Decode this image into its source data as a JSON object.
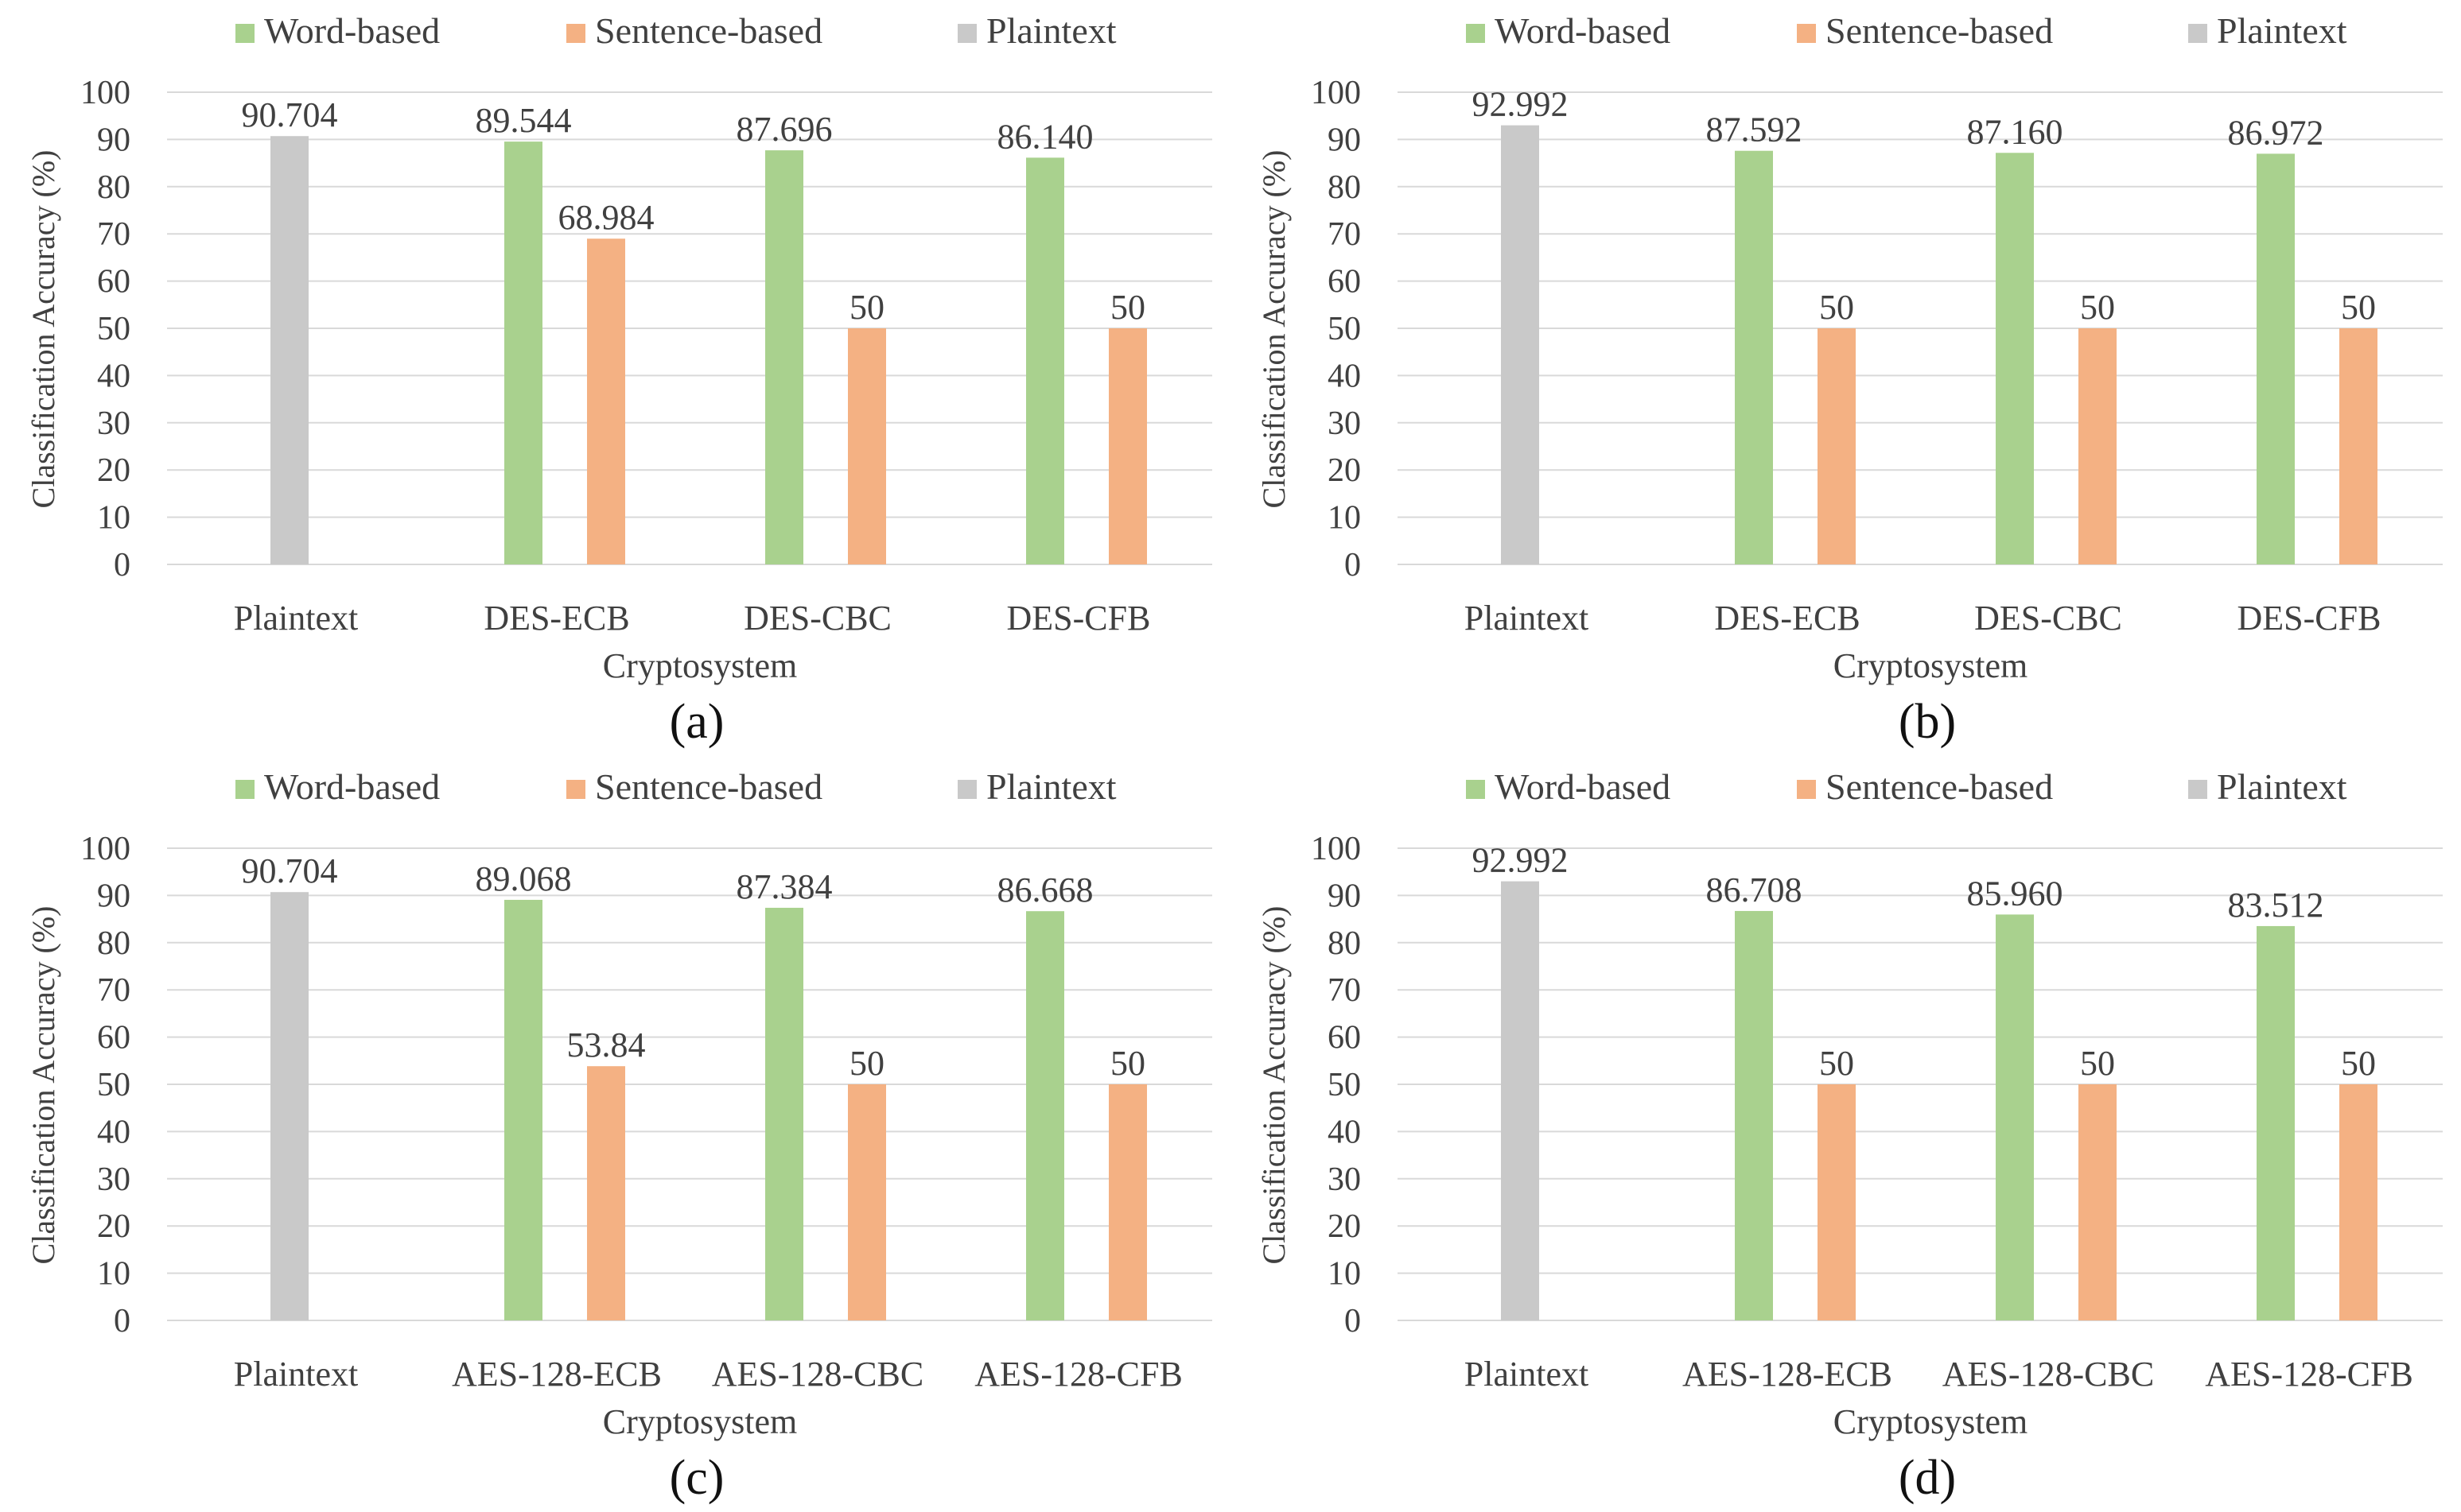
{
  "chart_data": [
    {
      "panel": "a",
      "type": "bar",
      "caption": "(a)",
      "xlabel": "Cryptosystem",
      "ylabel": "Classification Accuracy (%)",
      "ylim": [
        0,
        100
      ],
      "yticks": [
        0,
        10,
        20,
        30,
        40,
        50,
        60,
        70,
        80,
        90,
        100
      ],
      "legend": [
        "Word-based",
        "Sentence-based",
        "Plaintext"
      ],
      "categories": [
        "Plaintext",
        "DES-ECB",
        "DES-CBC",
        "DES-CFB"
      ],
      "series": [
        {
          "name": "Plaintext",
          "color": "#c9c9c9",
          "values": [
            90.704,
            null,
            null,
            null
          ],
          "labels": [
            "90.704",
            null,
            null,
            null
          ]
        },
        {
          "name": "Word-based",
          "color": "#a9d18e",
          "values": [
            null,
            89.544,
            87.696,
            86.14
          ],
          "labels": [
            null,
            "89.544",
            "87.696",
            "86.140"
          ]
        },
        {
          "name": "Sentence-based",
          "color": "#f4b183",
          "values": [
            null,
            68.984,
            50,
            50
          ],
          "labels": [
            null,
            "68.984",
            "50",
            "50"
          ]
        }
      ]
    },
    {
      "panel": "b",
      "type": "bar",
      "caption": "(b)",
      "xlabel": "Cryptosystem",
      "ylabel": "Classification Accuracy (%)",
      "ylim": [
        0,
        100
      ],
      "yticks": [
        0,
        10,
        20,
        30,
        40,
        50,
        60,
        70,
        80,
        90,
        100
      ],
      "legend": [
        "Word-based",
        "Sentence-based",
        "Plaintext"
      ],
      "categories": [
        "Plaintext",
        "DES-ECB",
        "DES-CBC",
        "DES-CFB"
      ],
      "series": [
        {
          "name": "Plaintext",
          "color": "#c9c9c9",
          "values": [
            92.992,
            null,
            null,
            null
          ],
          "labels": [
            "92.992",
            null,
            null,
            null
          ]
        },
        {
          "name": "Word-based",
          "color": "#a9d18e",
          "values": [
            null,
            87.592,
            87.16,
            86.972
          ],
          "labels": [
            null,
            "87.592",
            "87.160",
            "86.972"
          ]
        },
        {
          "name": "Sentence-based",
          "color": "#f4b183",
          "values": [
            null,
            50,
            50,
            50
          ],
          "labels": [
            null,
            "50",
            "50",
            "50"
          ]
        }
      ]
    },
    {
      "panel": "c",
      "type": "bar",
      "caption": "(c)",
      "xlabel": "Cryptosystem",
      "ylabel": "Classification Accuracy (%)",
      "ylim": [
        0,
        100
      ],
      "yticks": [
        0,
        10,
        20,
        30,
        40,
        50,
        60,
        70,
        80,
        90,
        100
      ],
      "legend": [
        "Word-based",
        "Sentence-based",
        "Plaintext"
      ],
      "categories": [
        "Plaintext",
        "AES-128-ECB",
        "AES-128-CBC",
        "AES-128-CFB"
      ],
      "series": [
        {
          "name": "Plaintext",
          "color": "#c9c9c9",
          "values": [
            90.704,
            null,
            null,
            null
          ],
          "labels": [
            "90.704",
            null,
            null,
            null
          ]
        },
        {
          "name": "Word-based",
          "color": "#a9d18e",
          "values": [
            null,
            89.068,
            87.384,
            86.668
          ],
          "labels": [
            null,
            "89.068",
            "87.384",
            "86.668"
          ]
        },
        {
          "name": "Sentence-based",
          "color": "#f4b183",
          "values": [
            null,
            53.84,
            50,
            50
          ],
          "labels": [
            null,
            "53.84",
            "50",
            "50"
          ]
        }
      ]
    },
    {
      "panel": "d",
      "type": "bar",
      "caption": "(d)",
      "xlabel": "Cryptosystem",
      "ylabel": "Classification Accuracy (%)",
      "ylim": [
        0,
        100
      ],
      "yticks": [
        0,
        10,
        20,
        30,
        40,
        50,
        60,
        70,
        80,
        90,
        100
      ],
      "legend": [
        "Word-based",
        "Sentence-based",
        "Plaintext"
      ],
      "categories": [
        "Plaintext",
        "AES-128-ECB",
        "AES-128-CBC",
        "AES-128-CFB"
      ],
      "series": [
        {
          "name": "Plaintext",
          "color": "#c9c9c9",
          "values": [
            92.992,
            null,
            null,
            null
          ],
          "labels": [
            "92.992",
            null,
            null,
            null
          ]
        },
        {
          "name": "Word-based",
          "color": "#a9d18e",
          "values": [
            null,
            86.708,
            85.96,
            83.512
          ],
          "labels": [
            null,
            "86.708",
            "85.960",
            "83.512"
          ]
        },
        {
          "name": "Sentence-based",
          "color": "#f4b183",
          "values": [
            null,
            50,
            50,
            50
          ],
          "labels": [
            null,
            "50",
            "50",
            "50"
          ]
        }
      ]
    }
  ]
}
